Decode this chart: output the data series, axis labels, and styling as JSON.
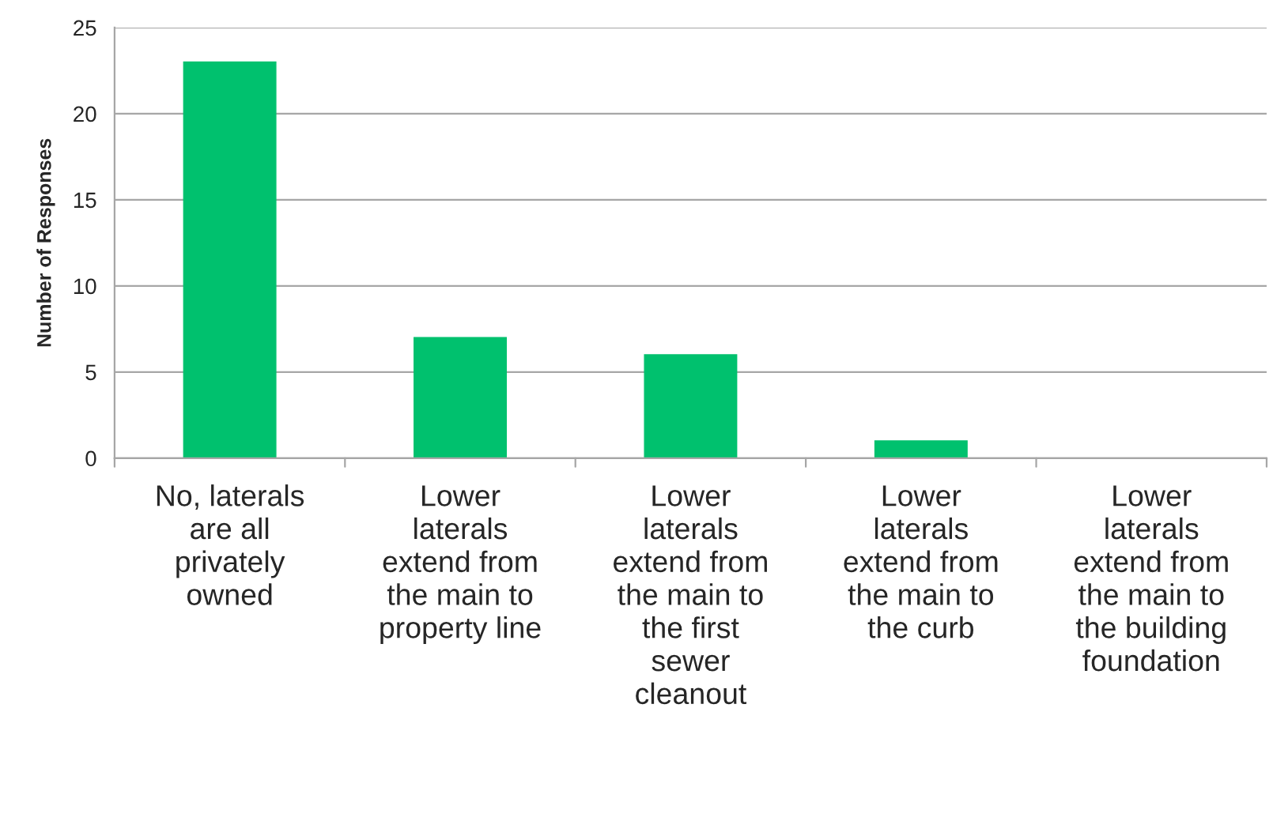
{
  "chart_data": {
    "type": "bar",
    "categories": [
      "No, laterals\nare all\nprivately\nowned",
      "Lower\nlaterals\nextend from\nthe main to\nproperty line",
      "Lower\nlaterals\nextend from\nthe main to\nthe first\nsewer\ncleanout",
      "Lower\nlaterals\nextend from\nthe main to\nthe curb",
      "Lower\nlaterals\nextend from\nthe main to\nthe building\nfoundation"
    ],
    "values": [
      23,
      7,
      6,
      1,
      0
    ],
    "color": "#00c16e",
    "ylabel": "Number of Responses",
    "ylim": [
      0,
      25
    ],
    "yticks": [
      0,
      5,
      10,
      15,
      20,
      25
    ],
    "grid": "y"
  }
}
